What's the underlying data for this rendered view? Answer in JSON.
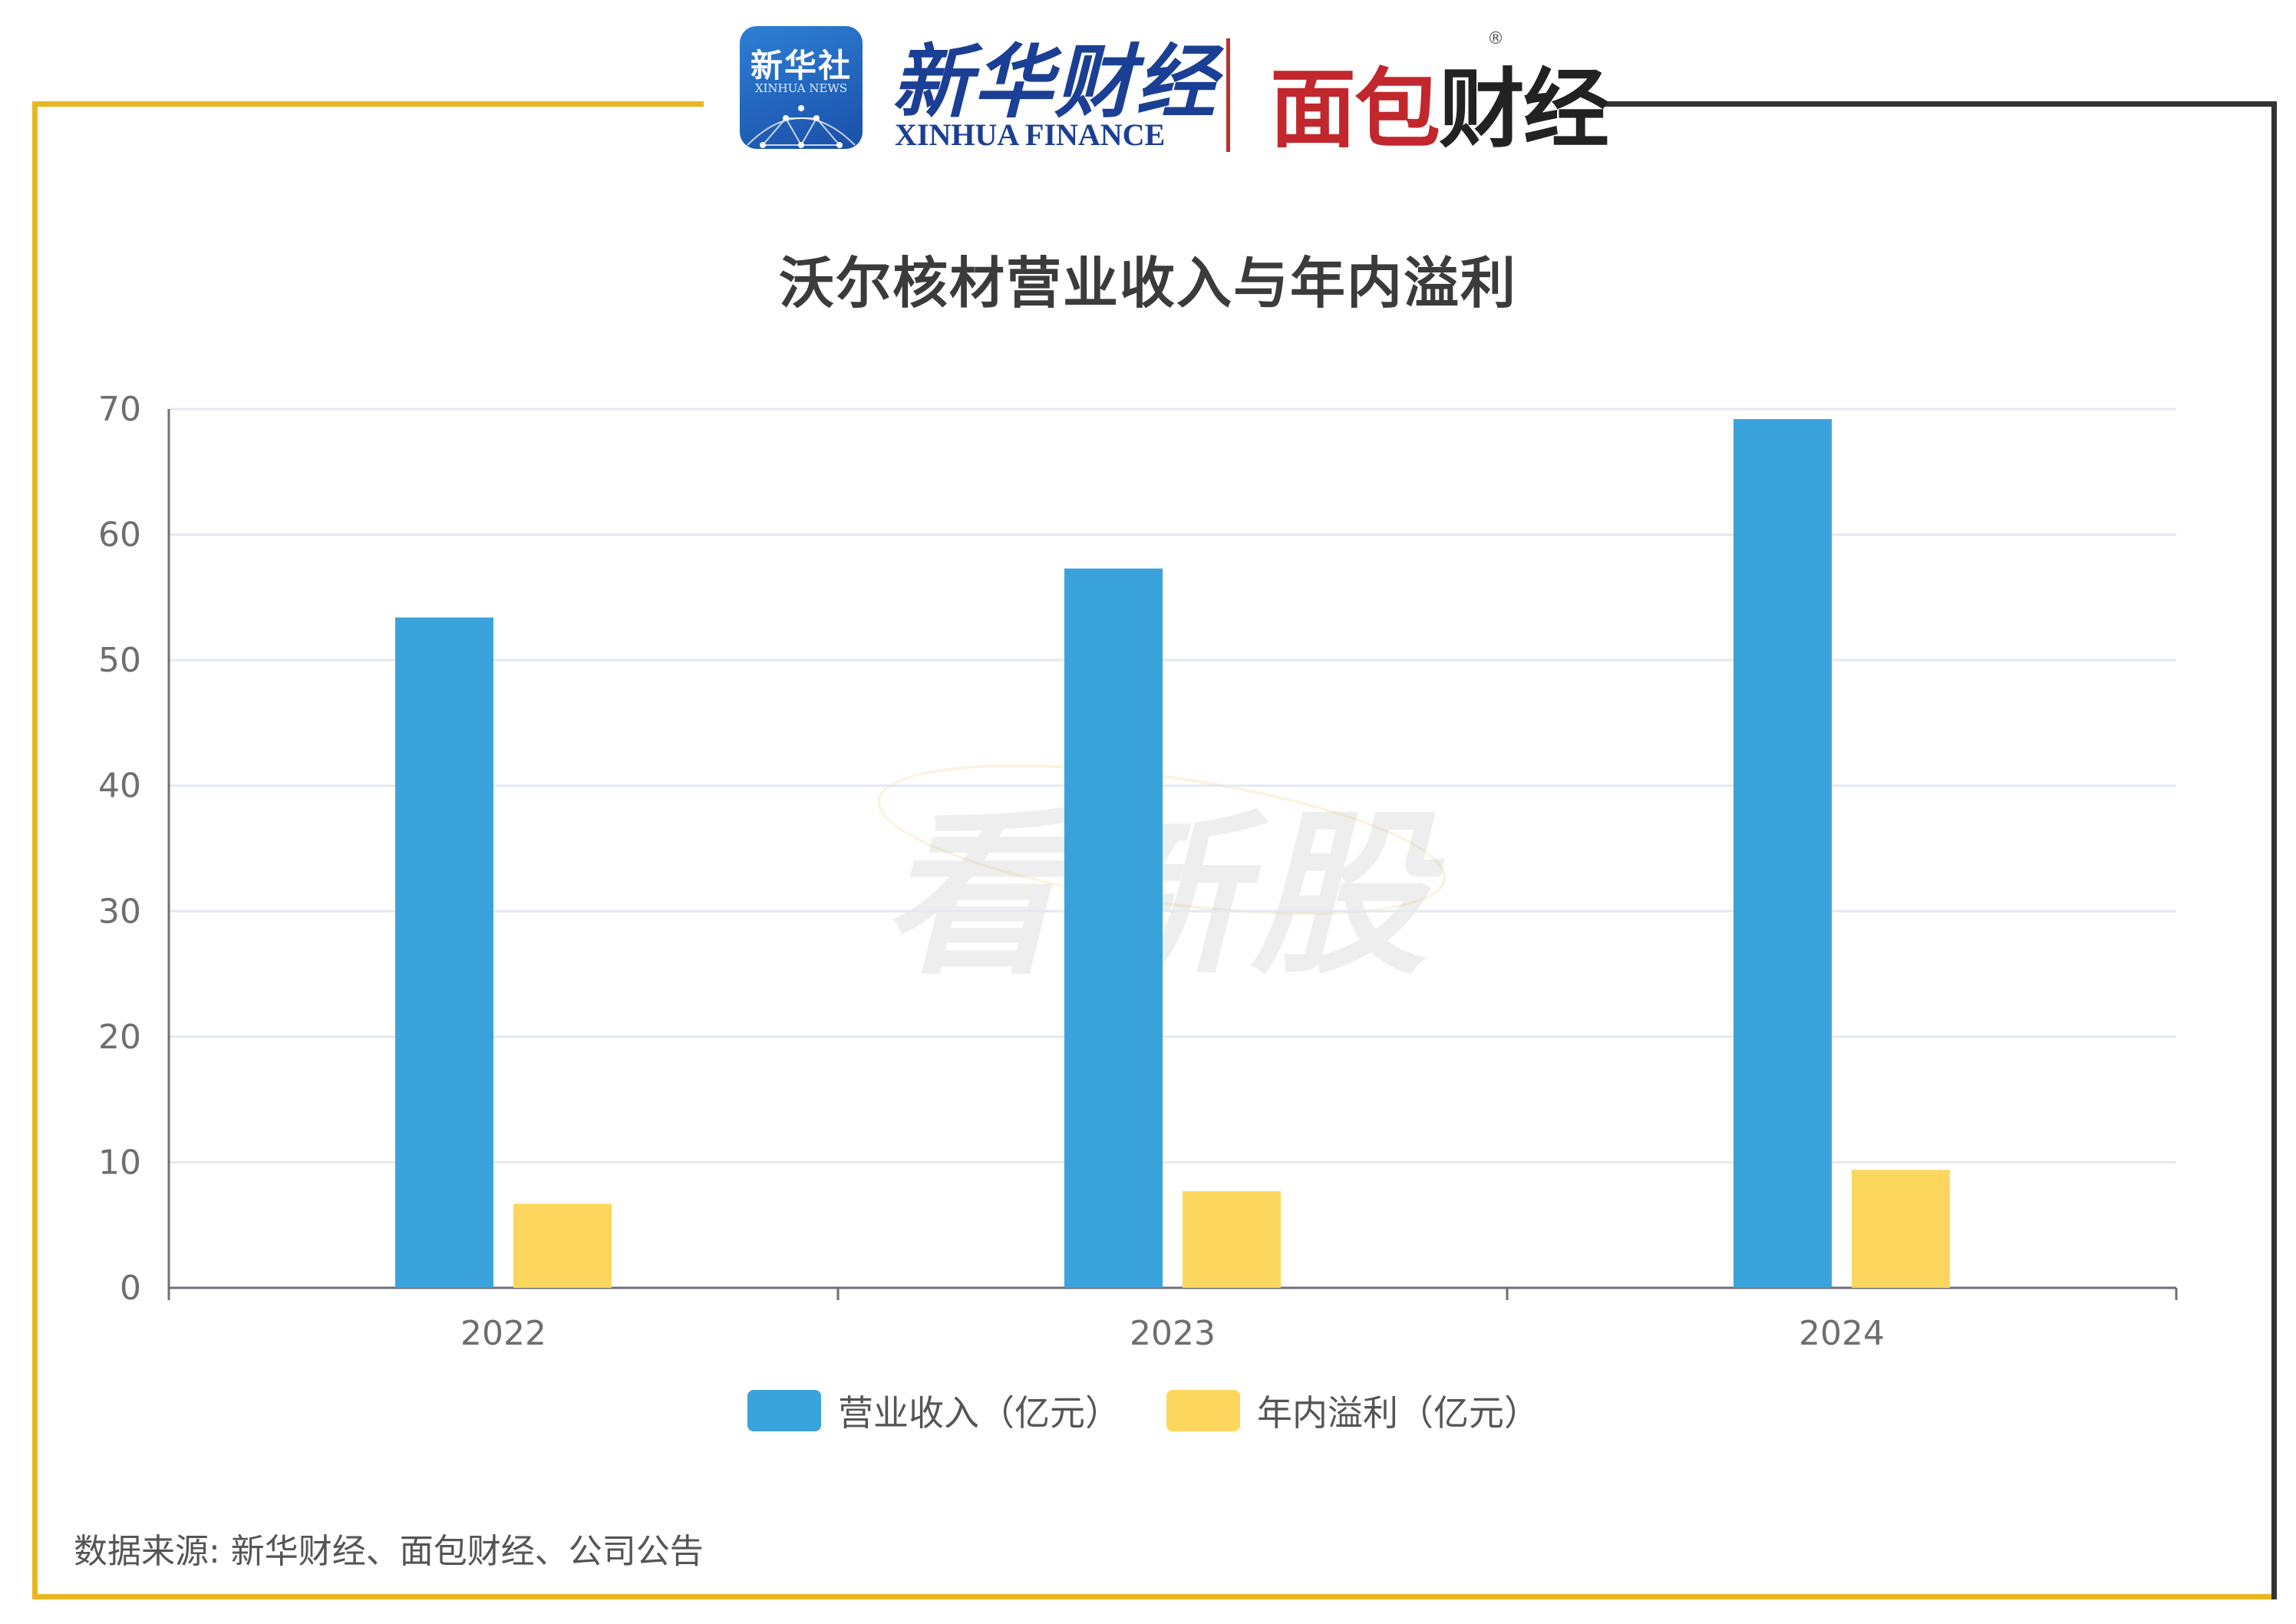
{
  "header": {
    "xinhua_news_logo": {
      "zh": "新华社",
      "en": "XINHUA NEWS"
    },
    "xinhua_finance_logo": {
      "zh": "新华财经",
      "en": "XINHUA FINANCE"
    },
    "mianbao_logo": {
      "text_red": "面包",
      "text_dark": "财经",
      "reg_mark": "®"
    }
  },
  "watermark": "看新股",
  "colors": {
    "revenue": "#3AA3DC",
    "profit": "#FDD75D",
    "frame_gold": "#E9B622",
    "frame_dark": "#333333",
    "grid": "#E3E8F2",
    "axis": "#6E7079"
  },
  "chart_data": {
    "type": "bar",
    "title": "沃尔核材营业收入与年内溢利",
    "categories": [
      "2022",
      "2023",
      "2024"
    ],
    "series": [
      {
        "name": "营业收入（亿元）",
        "values": [
          53.4,
          57.3,
          69.2
        ]
      },
      {
        "name": "年内溢利（亿元）",
        "values": [
          6.7,
          7.7,
          9.4
        ]
      }
    ],
    "ylim": [
      0,
      70
    ],
    "yticks": [
      0,
      10,
      20,
      30,
      40,
      50,
      60,
      70
    ],
    "grid": true,
    "legend": "bottom-center"
  },
  "footer": {
    "source": "数据来源: 新华财经、面包财经、公司公告"
  }
}
